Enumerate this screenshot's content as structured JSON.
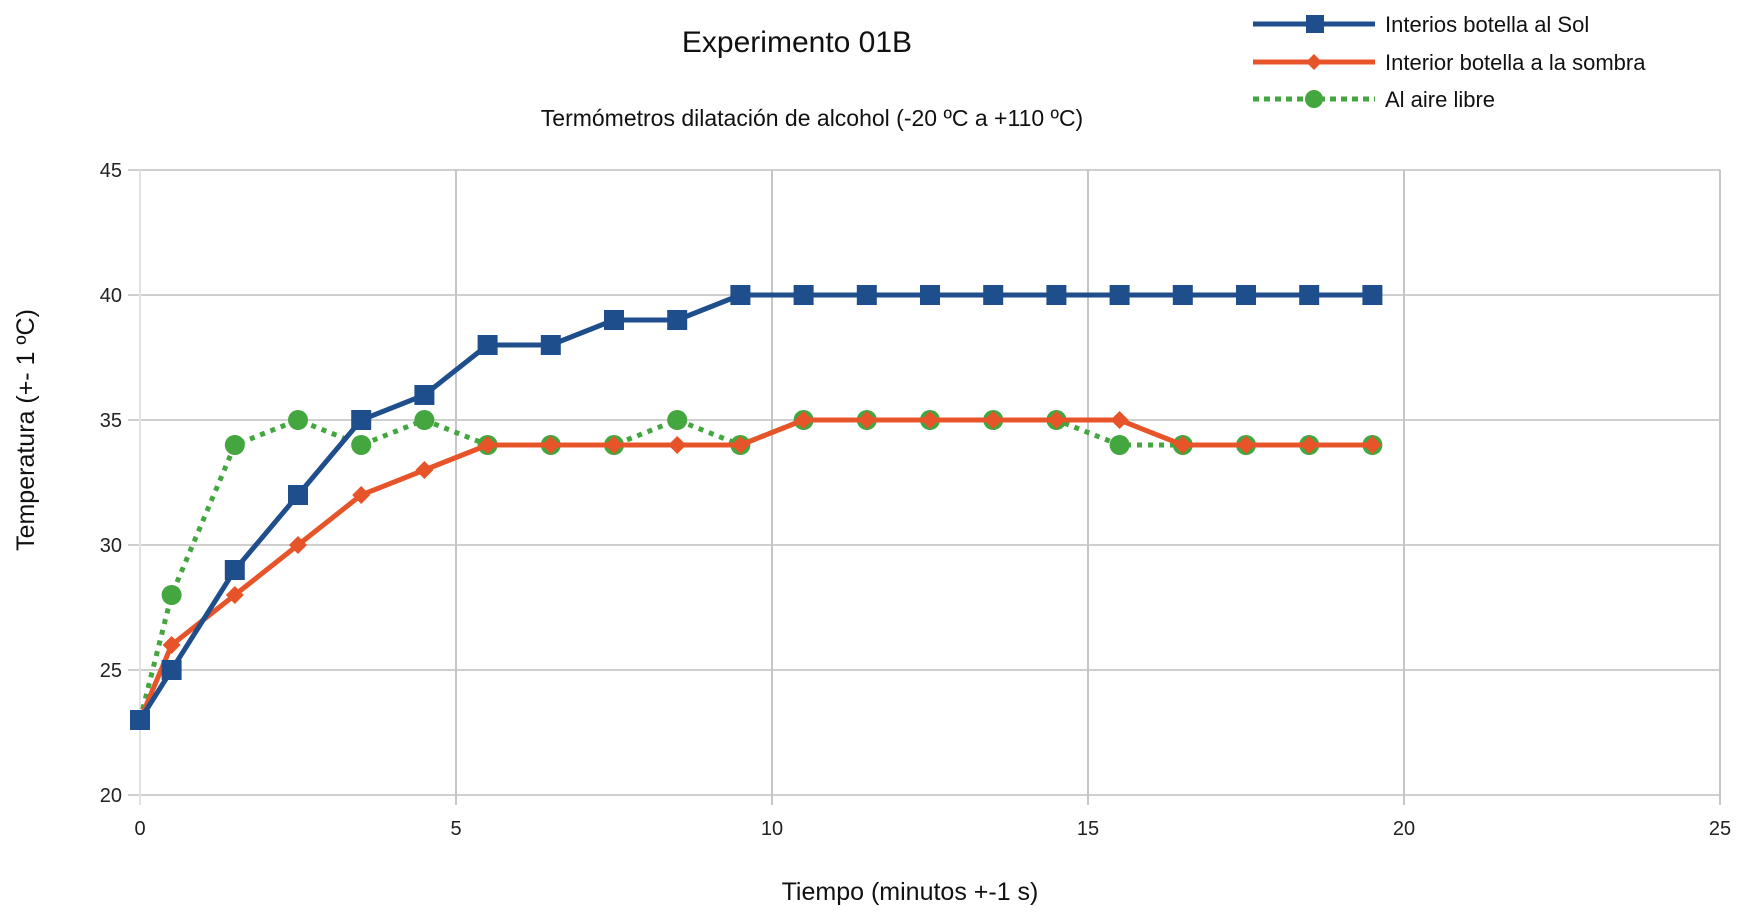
{
  "chart_data": {
    "type": "line",
    "title": "Experimento 01B",
    "subtitle": "Termómetros dilatación de alcohol (-20 ºC a +110 ºC)",
    "xlabel": "Tiempo (minutos +-1 s)",
    "ylabel": "Temperatura (+- 1 ºC)",
    "xlim": [
      0,
      25
    ],
    "ylim": [
      20,
      45
    ],
    "x_ticks": [
      "0",
      "5",
      "10",
      "15",
      "20",
      "25"
    ],
    "y_ticks": [
      "20",
      "25",
      "30",
      "35",
      "40",
      "45"
    ],
    "grid": true,
    "legend_position": "top-right",
    "x": [
      0,
      0.5,
      1.5,
      2.5,
      3.5,
      4.5,
      5.5,
      6.5,
      7.5,
      8.5,
      9.5,
      10.5,
      11.5,
      12.5,
      13.5,
      14.5,
      15.5,
      16.5,
      17.5,
      18.5,
      19.5
    ],
    "series": [
      {
        "name": "Interios botella al Sol",
        "color": "#1f4e8c",
        "marker": "square",
        "line_style": "solid",
        "values": [
          23,
          25,
          29,
          32,
          35,
          36,
          38,
          38,
          39,
          39,
          40,
          40,
          40,
          40,
          40,
          40,
          40,
          40,
          40,
          40,
          40
        ]
      },
      {
        "name": "Interior botella a la sombra",
        "color": "#e8542a",
        "marker": "diamond",
        "line_style": "solid",
        "values": [
          23,
          26,
          28,
          30,
          32,
          33,
          34,
          34,
          34,
          34,
          34,
          35,
          35,
          35,
          35,
          35,
          35,
          34,
          34,
          34,
          34
        ]
      },
      {
        "name": "Al aire libre",
        "color": "#43a63e",
        "marker": "circle",
        "line_style": "dotted",
        "values": [
          23,
          28,
          34,
          35,
          34,
          35,
          34,
          34,
          34,
          35,
          34,
          35,
          35,
          35,
          35,
          35,
          34,
          34,
          34,
          34,
          34
        ]
      }
    ]
  }
}
